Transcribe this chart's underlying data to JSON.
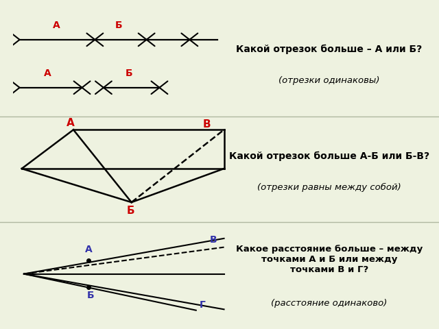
{
  "bg_color": "#eef2e0",
  "panel_bg": "#ffffff",
  "red_color": "#cc0000",
  "blue_color": "#3333aa",
  "black_color": "#000000",
  "text1_bold": "Какой отрезок больше – А или Б?",
  "text1_sub": "(отрезки одинаковы)",
  "text2_bold": "Какой отрезок больше А-Б или Б-В?",
  "text2_sub": "(отрезки равны между собой)",
  "text3_bold": "Какое расстояние больше – между\nточками А и Б или между\nточками В и Г?",
  "text3_sub": "(расстояние одинаково)"
}
